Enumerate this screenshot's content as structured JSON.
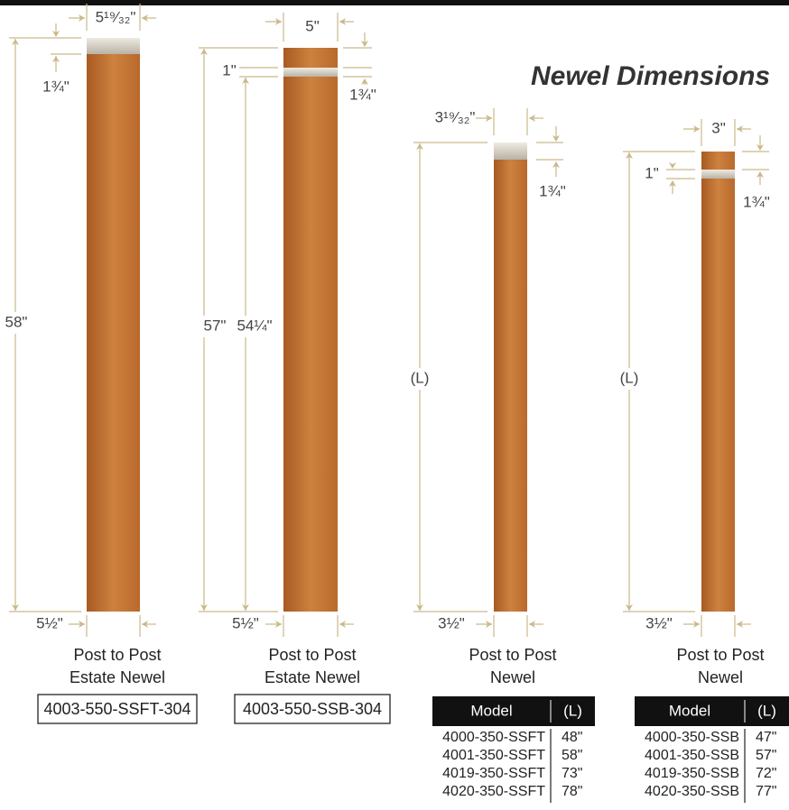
{
  "title": "Newel Dimensions",
  "posts": [
    {
      "top_width": "5¹⁹⁄₃₂\"",
      "cap_height": "1¾\"",
      "height": "58\"",
      "base_width": "5½\"",
      "name": [
        "Post to Post",
        "Estate Newel"
      ],
      "model": "4003-550-SSFT-304"
    },
    {
      "top_width": "5\"",
      "cap_gap": "1\"",
      "cap_height": "1¾\"",
      "height": "57\"",
      "inner_height": "54¼\"",
      "base_width": "5½\"",
      "name": [
        "Post to Post",
        "Estate Newel"
      ],
      "model": "4003-550-SSB-304"
    },
    {
      "top_width": "3¹⁹⁄₃₂\"",
      "cap_height": "1¾\"",
      "height": "(L)",
      "base_width": "3½\"",
      "name": [
        "Post to Post",
        "Newel"
      ],
      "table": {
        "headers": [
          "Model",
          "(L)"
        ],
        "rows": [
          [
            "4000-350-SSFT",
            "48\""
          ],
          [
            "4001-350-SSFT",
            "58\""
          ],
          [
            "4019-350-SSFT",
            "73\""
          ],
          [
            "4020-350-SSFT",
            "78\""
          ]
        ]
      }
    },
    {
      "top_width": "3\"",
      "cap_gap": "1\"",
      "cap_height": "1¾\"",
      "height": "(L)",
      "base_width": "3½\"",
      "name": [
        "Post to Post",
        "Newel"
      ],
      "table": {
        "headers": [
          "Model",
          "(L)"
        ],
        "rows": [
          [
            "4000-350-SSB",
            "47\""
          ],
          [
            "4001-350-SSB",
            "57\""
          ],
          [
            "4019-350-SSB",
            "72\""
          ],
          [
            "4020-350-SSB",
            "77\""
          ]
        ]
      }
    }
  ]
}
